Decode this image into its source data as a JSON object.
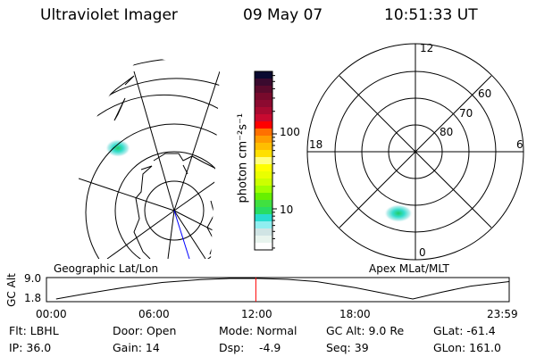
{
  "header": {
    "instrument": "Ultraviolet Imager",
    "date": "09 May 07",
    "time": "10:51:33 UT"
  },
  "colorbar": {
    "label": "photon cm⁻²s⁻¹",
    "scale": "log",
    "tick_labels": [
      "100",
      "10"
    ],
    "colors": [
      "#0a0a30",
      "#3a0a2e",
      "#5a0a2c",
      "#780a2c",
      "#8c0a30",
      "#a80a30",
      "#c80a30",
      "#ff0000",
      "#ff7000",
      "#ff9c00",
      "#ffbe00",
      "#ffe000",
      "#ffff80",
      "#ffff00",
      "#eaff00",
      "#ccff00",
      "#a0ff00",
      "#66f000",
      "#40e040",
      "#28dc64",
      "#28dcd0",
      "#90eef0",
      "#d0e4e4",
      "#e8f4ee",
      "#ffffff"
    ]
  },
  "geo_map": {
    "label": "Geographic Lat/Lon",
    "pole_line_color": "#0000ff"
  },
  "mag_plot": {
    "label": "Apex MLat/MLT",
    "mlt_labels": [
      "12",
      "6",
      "0",
      "18"
    ],
    "lat_labels": [
      "80",
      "70",
      "60"
    ]
  },
  "altitude_plot": {
    "ylabel": "GC Alt",
    "y_ticks": [
      "9.0",
      "1.8"
    ],
    "x_ticks": [
      "00:00",
      "06:00",
      "12:00",
      "18:00",
      "23:59"
    ],
    "current_marker_color": "#ff0000"
  },
  "chart_data": {
    "type": "line",
    "title": "",
    "xlabel": "",
    "ylabel": "GC Alt",
    "xlim": [
      0,
      24
    ],
    "ylim": [
      1.8,
      9.0
    ],
    "x_hours": [
      0.5,
      2,
      4,
      6,
      8,
      9.5,
      11,
      12.5,
      14,
      16,
      17.5,
      19,
      20.5,
      22,
      24
    ],
    "values": [
      1.8,
      3.6,
      5.8,
      7.6,
      8.6,
      9.0,
      9.0,
      8.7,
      7.9,
      5.8,
      3.8,
      1.8,
      4.2,
      6.3,
      7.9
    ],
    "current_time_hours": 10.86
  },
  "status": {
    "filter": "Flt: LBHL",
    "ip": "IP: 36.0",
    "door": "Door: Open",
    "gain": "Gain: 14",
    "mode": "Mode: Normal",
    "dsp_label": "Dsp:",
    "dsp_value": "-4.9",
    "gc_alt": "GC Alt: 9.0 Re",
    "seq": "Seq: 39",
    "glat": "GLat: -61.4",
    "glon": "GLon: 161.0"
  }
}
